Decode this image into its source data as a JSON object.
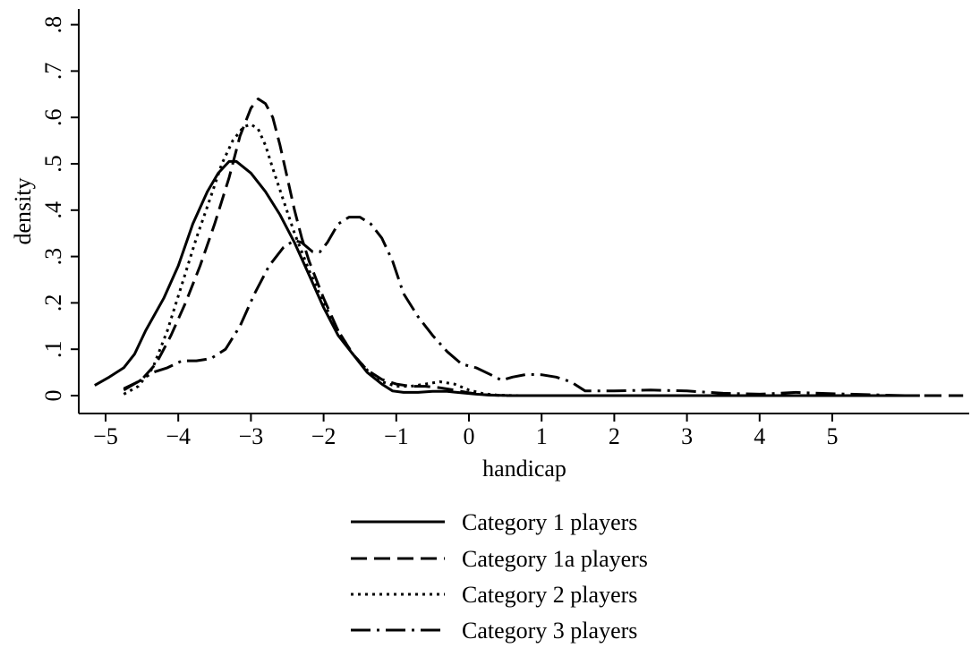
{
  "chart_data": {
    "type": "line",
    "xlabel": "handicap",
    "ylabel": "density",
    "xlim": [
      -5.2,
      6.8
    ],
    "ylim": [
      0,
      0.8
    ],
    "x_ticks": [
      -5,
      -4,
      -3,
      -2,
      -1,
      0,
      1,
      2,
      3,
      4,
      5
    ],
    "x_tick_labels": [
      "−5",
      "−4",
      "−3",
      "−2",
      "−1",
      "0",
      "1",
      "2",
      "3",
      "4",
      "5"
    ],
    "y_ticks": [
      0,
      0.1,
      0.2,
      0.3,
      0.4,
      0.5,
      0.6,
      0.7,
      0.8
    ],
    "y_tick_labels": [
      "0",
      ".1",
      ".2",
      ".3",
      ".4",
      ".5",
      ".6",
      ".7",
      ".8"
    ],
    "grid": false,
    "legend_position": "bottom",
    "series": [
      {
        "name": "Category 1 players",
        "style": "solid",
        "x": [
          -5.15,
          -4.95,
          -4.75,
          -4.6,
          -4.45,
          -4.2,
          -4.0,
          -3.8,
          -3.6,
          -3.45,
          -3.3,
          -3.2,
          -3.0,
          -2.8,
          -2.6,
          -2.4,
          -2.2,
          -2.0,
          -1.8,
          -1.6,
          -1.4,
          -1.2,
          -1.05,
          -0.9,
          -0.7,
          -0.5,
          -0.3,
          -0.1,
          0.1,
          0.3,
          0.6,
          1.0,
          2.0,
          3.0,
          4.0,
          5.0,
          6.2
        ],
        "y": [
          0.022,
          0.04,
          0.06,
          0.09,
          0.14,
          0.21,
          0.28,
          0.37,
          0.44,
          0.48,
          0.505,
          0.505,
          0.48,
          0.44,
          0.39,
          0.33,
          0.26,
          0.19,
          0.13,
          0.09,
          0.05,
          0.025,
          0.01,
          0.007,
          0.007,
          0.009,
          0.009,
          0.006,
          0.003,
          0.001,
          0.0,
          0.0,
          0.0,
          0.0,
          0.0,
          0.0,
          0.0
        ]
      },
      {
        "name": "Category 1a players",
        "style": "dashed",
        "x": [
          -4.75,
          -4.5,
          -4.3,
          -4.1,
          -3.9,
          -3.7,
          -3.5,
          -3.3,
          -3.15,
          -3.0,
          -2.9,
          -2.8,
          -2.7,
          -2.6,
          -2.5,
          -2.4,
          -2.3,
          -2.2,
          -2.0,
          -1.8,
          -1.6,
          -1.4,
          -1.2,
          -1.0,
          -0.8,
          -0.6,
          -0.4,
          -0.2,
          0.0,
          0.2,
          0.5,
          1.0,
          2.0,
          3.0,
          4.0,
          5.0,
          6.8
        ],
        "y": [
          0.012,
          0.035,
          0.07,
          0.13,
          0.2,
          0.28,
          0.37,
          0.47,
          0.56,
          0.62,
          0.64,
          0.63,
          0.6,
          0.54,
          0.47,
          0.4,
          0.34,
          0.29,
          0.21,
          0.14,
          0.09,
          0.055,
          0.035,
          0.025,
          0.02,
          0.02,
          0.017,
          0.012,
          0.006,
          0.002,
          0.0,
          0.0,
          0.0,
          0.0,
          0.0,
          0.0,
          0.0
        ]
      },
      {
        "name": "Category 2 players",
        "style": "dotted",
        "x": [
          -4.75,
          -4.55,
          -4.35,
          -4.15,
          -3.95,
          -3.75,
          -3.55,
          -3.4,
          -3.25,
          -3.1,
          -3.0,
          -2.9,
          -2.8,
          -2.7,
          -2.55,
          -2.4,
          -2.2,
          -2.0,
          -1.8,
          -1.6,
          -1.4,
          -1.2,
          -1.0,
          -0.8,
          -0.6,
          -0.4,
          -0.2,
          0.0,
          0.2,
          0.4,
          0.7,
          1.0,
          2.0,
          3.0,
          4.0,
          5.0,
          6.5
        ],
        "y": [
          0.003,
          0.02,
          0.06,
          0.14,
          0.24,
          0.34,
          0.43,
          0.5,
          0.55,
          0.58,
          0.585,
          0.575,
          0.54,
          0.49,
          0.42,
          0.35,
          0.27,
          0.2,
          0.14,
          0.09,
          0.055,
          0.03,
          0.02,
          0.02,
          0.025,
          0.03,
          0.025,
          0.012,
          0.004,
          0.001,
          0.0,
          0.0,
          0.0,
          0.0,
          0.0,
          0.0,
          0.0
        ]
      },
      {
        "name": "Category 3 players",
        "style": "dashdot",
        "x": [
          -4.75,
          -4.55,
          -4.35,
          -4.15,
          -3.95,
          -3.75,
          -3.55,
          -3.35,
          -3.15,
          -2.95,
          -2.75,
          -2.55,
          -2.4,
          -2.3,
          -2.15,
          -2.05,
          -1.95,
          -1.8,
          -1.65,
          -1.5,
          -1.35,
          -1.2,
          -1.05,
          -0.9,
          -0.7,
          -0.5,
          -0.3,
          -0.1,
          0.1,
          0.3,
          0.45,
          0.6,
          0.8,
          1.0,
          1.2,
          1.4,
          1.6,
          2.0,
          2.5,
          3.0,
          3.5,
          4.0,
          4.5,
          5.0,
          6.0
        ],
        "y": [
          0.015,
          0.03,
          0.05,
          0.06,
          0.075,
          0.075,
          0.08,
          0.1,
          0.15,
          0.22,
          0.28,
          0.32,
          0.335,
          0.33,
          0.31,
          0.31,
          0.33,
          0.37,
          0.385,
          0.385,
          0.37,
          0.34,
          0.29,
          0.22,
          0.17,
          0.13,
          0.095,
          0.068,
          0.06,
          0.045,
          0.033,
          0.04,
          0.046,
          0.045,
          0.04,
          0.03,
          0.01,
          0.01,
          0.012,
          0.01,
          0.005,
          0.003,
          0.007,
          0.004,
          0.0
        ]
      }
    ]
  }
}
